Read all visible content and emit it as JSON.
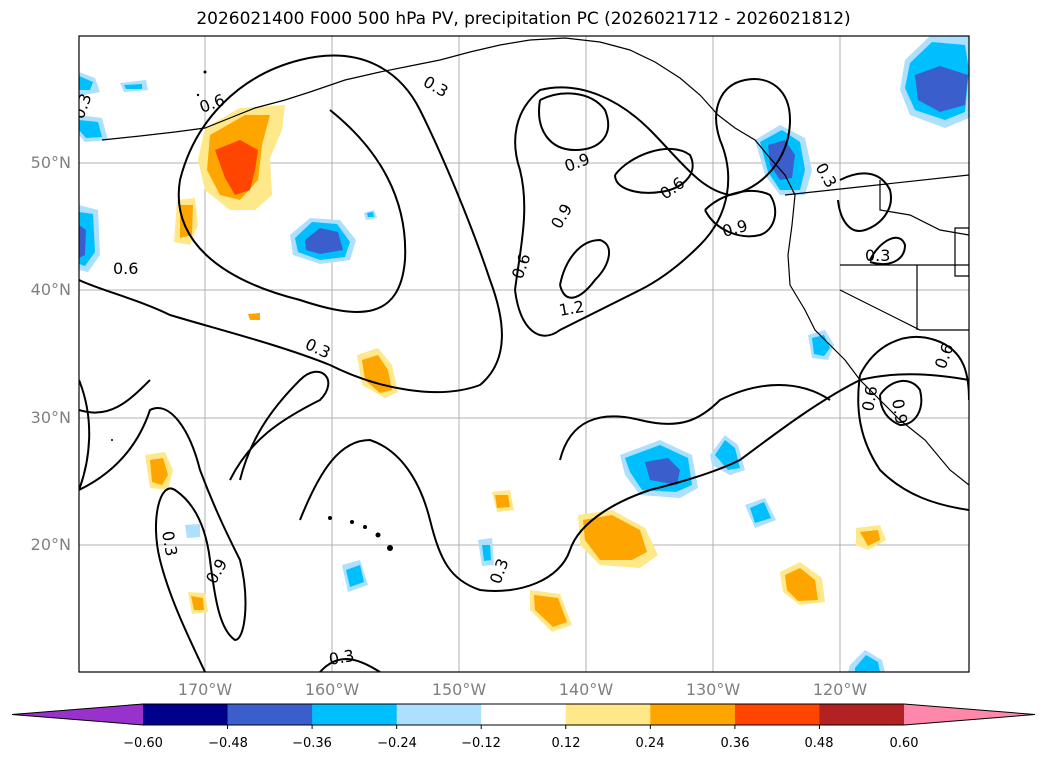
{
  "title": "2026021400 F000 500 hPa PV, precipitation PC (2026021712 - 2026021812)",
  "lat_labels": [
    "50°N",
    "40°N",
    "30°N",
    "20°N"
  ],
  "lon_labels": [
    "170°W",
    "160°W",
    "150°W",
    "140°W",
    "130°W",
    "120°W"
  ],
  "contour_labels": [
    "0.3",
    "0.6",
    "0.9",
    "1.2"
  ],
  "colorbar": {
    "ticks": [
      "−0.60",
      "−0.48",
      "−0.36",
      "−0.24",
      "−0.12",
      "0.12",
      "0.24",
      "0.36",
      "0.48",
      "0.60"
    ],
    "colors": [
      "#9932CC",
      "#00008B",
      "#3A5FCD",
      "#00BFFF",
      "#ADDFFF",
      "#FFFFFF",
      "#FFE88A",
      "#FFA500",
      "#FF4500",
      "#B22222",
      "#FF88AA"
    ]
  }
}
